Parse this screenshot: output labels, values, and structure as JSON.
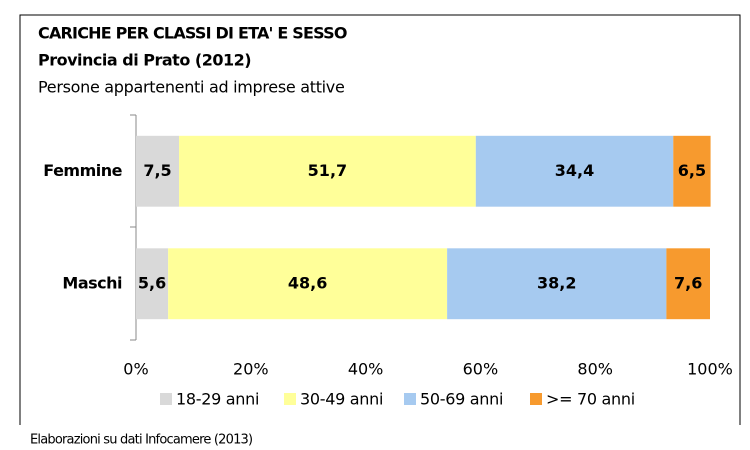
{
  "chart_data": {
    "type": "stacked_bar_horizontal",
    "title": "CARICHE PER CLASSI DI ETA' E SESSO",
    "subtitle": "Provincia di Prato (2012)",
    "caption": "Persone appartenenti ad imprese attive",
    "source": "Elaborazioni su dati Infocamere (2013)",
    "categories": [
      "Femmine",
      "Maschi"
    ],
    "series": [
      {
        "name": "18-29 anni",
        "color": "#d9d9d9",
        "values": [
          7.5,
          5.6
        ],
        "value_labels": [
          "7,5",
          "5,6"
        ]
      },
      {
        "name": "30-49 anni",
        "color": "#ffff99",
        "values": [
          51.7,
          48.6
        ],
        "value_labels": [
          "51,7",
          "48,6"
        ]
      },
      {
        "name": "50-69 anni",
        "color": "#a6caf0",
        "values": [
          34.4,
          38.2
        ],
        "value_labels": [
          "34,4",
          "38,2"
        ]
      },
      {
        "name": ">= 70 anni",
        "color": "#f79a2e",
        "values": [
          6.5,
          7.6
        ],
        "value_labels": [
          "6,5",
          "7,6"
        ]
      }
    ],
    "xlim": [
      0,
      100
    ],
    "xticks": [
      {
        "value": 0,
        "label": "0%"
      },
      {
        "value": 20,
        "label": "20%"
      },
      {
        "value": 40,
        "label": "40%"
      },
      {
        "value": 60,
        "label": "60%"
      },
      {
        "value": 80,
        "label": "80%"
      },
      {
        "value": 100,
        "label": "100%"
      }
    ],
    "legend": "bottom"
  }
}
